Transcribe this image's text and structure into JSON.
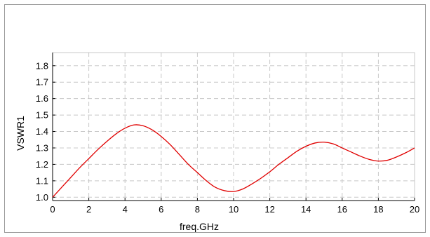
{
  "chart_data": {
    "type": "line",
    "xlabel": "freq.GHz",
    "ylabel": "VSWR1",
    "xlim": [
      0,
      20
    ],
    "ylim": [
      0.98,
      1.88
    ],
    "x_ticks": [
      0,
      2,
      4,
      6,
      8,
      10,
      12,
      14,
      16,
      18,
      20
    ],
    "y_ticks": [
      1.0,
      1.1,
      1.2,
      1.3,
      1.4,
      1.5,
      1.6,
      1.7,
      1.8
    ],
    "grid": true,
    "series": [
      {
        "color": "#e00000",
        "x": [
          0,
          0.5,
          1,
          1.5,
          2,
          2.5,
          3,
          3.5,
          4,
          4.5,
          5,
          5.5,
          6,
          6.5,
          7,
          7.5,
          8,
          8.5,
          9,
          9.5,
          10,
          10.5,
          11,
          11.5,
          12,
          12.5,
          13,
          13.5,
          14,
          14.5,
          15,
          15.5,
          16,
          16.5,
          17,
          17.5,
          18,
          18.5,
          19,
          19.5,
          20
        ],
        "y": [
          1.0,
          1.06,
          1.12,
          1.18,
          1.235,
          1.29,
          1.34,
          1.385,
          1.42,
          1.44,
          1.435,
          1.41,
          1.37,
          1.32,
          1.26,
          1.2,
          1.15,
          1.1,
          1.06,
          1.04,
          1.035,
          1.05,
          1.08,
          1.115,
          1.155,
          1.2,
          1.24,
          1.28,
          1.31,
          1.33,
          1.335,
          1.325,
          1.3,
          1.275,
          1.25,
          1.23,
          1.22,
          1.225,
          1.245,
          1.27,
          1.3
        ]
      }
    ]
  }
}
